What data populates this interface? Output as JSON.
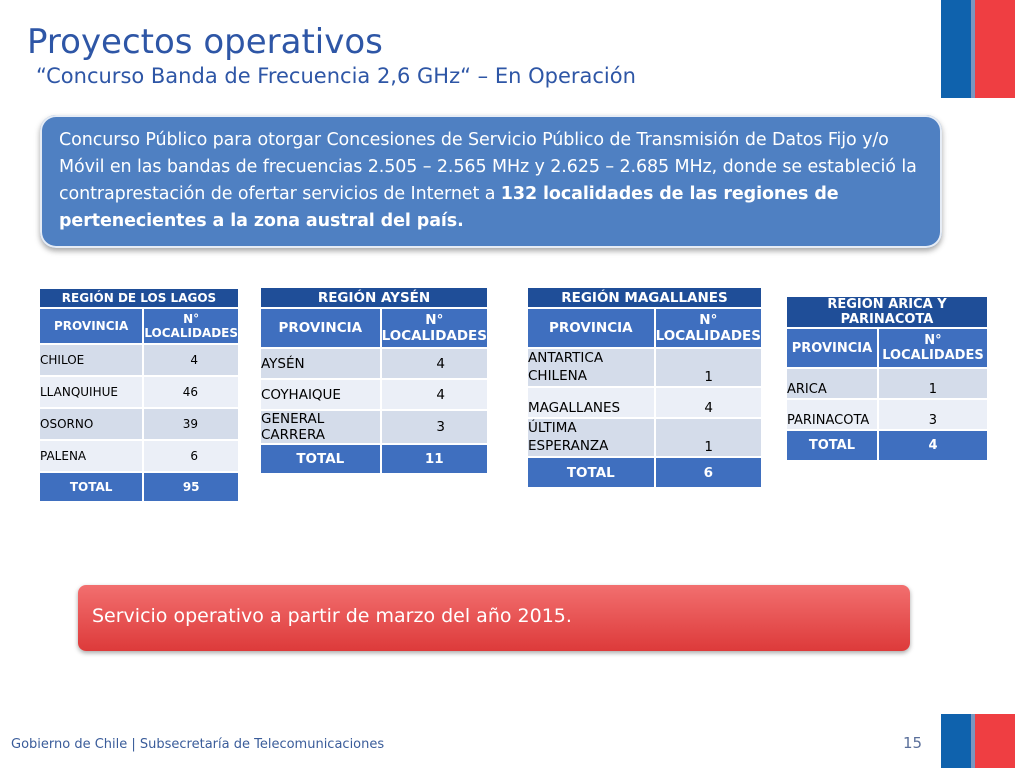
{
  "slide": {
    "title": "Proyectos operativos",
    "subtitle": "“Concurso Banda de Frecuencia 2,6 GHz“ – En Operación"
  },
  "info": {
    "text": "Concurso Público para otorgar Concesiones de Servicio Público de Transmisión de Datos Fijo y/o Móvil en las bandas de frecuencias 2.505 – 2.565 MHz y 2.625 – 2.685 MHz, donde se estableció la contraprestación de ofertar servicios de Internet a ",
    "bold": "132 localidades de las regiones de pertenecientes a la zona austral del país."
  },
  "tables": [
    {
      "region": "REGIÓN DE LOS LAGOS",
      "col_provincia": "PROVINCIA",
      "col_localidades": "N° LOCALIDADES",
      "rows": [
        {
          "provincia": "CHILOE",
          "localidades": "4"
        },
        {
          "provincia": "LLANQUIHUE",
          "localidades": "46"
        },
        {
          "provincia": "OSORNO",
          "localidades": "39"
        },
        {
          "provincia": "PALENA",
          "localidades": "6"
        }
      ],
      "total_label": "TOTAL",
      "total": "95"
    },
    {
      "region": "REGIÓN AYSÉN",
      "col_provincia": "PROVINCIA",
      "col_localidades": "N° LOCALIDADES",
      "rows": [
        {
          "provincia": "AYSÉN",
          "localidades": "4"
        },
        {
          "provincia": "COYHAIQUE",
          "localidades": "4"
        },
        {
          "provincia": "GENERAL CARRERA",
          "localidades": "3"
        }
      ],
      "total_label": "TOTAL",
      "total": "11"
    },
    {
      "region": "REGIÓN MAGALLANES",
      "col_provincia": "PROVINCIA",
      "col_localidades": "N° LOCALIDADES",
      "rows": [
        {
          "provincia": "ANTARTICA CHILENA",
          "localidades": "1"
        },
        {
          "provincia": "MAGALLANES",
          "localidades": "4"
        },
        {
          "provincia": "ÚLTIMA ESPERANZA",
          "localidades": "1"
        }
      ],
      "total_label": "TOTAL",
      "total": "6"
    },
    {
      "region": "REGIÓN ARICA Y PARINACOTA",
      "col_provincia": "PROVINCIA",
      "col_localidades": "N° LOCALIDADES",
      "rows": [
        {
          "provincia": "ARICA",
          "localidades": "1"
        },
        {
          "provincia": "PARINACOTA",
          "localidades": "3"
        }
      ],
      "total_label": "TOTAL",
      "total": "4"
    }
  ],
  "status": "Servicio operativo a partir de marzo del año 2015.",
  "footer": "Gobierno de Chile | Subsecretaría de Telecomunicaciones",
  "page_number": "15",
  "colors": {
    "title_blue": "#2e56a6",
    "header_blue": "#1f4e98",
    "subheader_blue": "#3f6fbf",
    "info_box_blue": "#4f80c2",
    "status_red": "#e04848",
    "flag_blue": "#0f62ad",
    "flag_red": "#ef3e42"
  }
}
